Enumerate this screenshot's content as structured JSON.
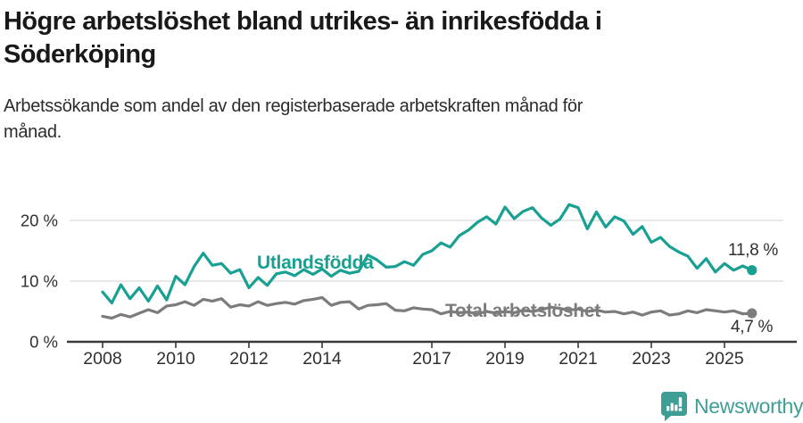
{
  "page": {
    "title_line1": "Högre arbetslöshet bland utrikes- än inrikesfödda i",
    "title_line2": "Söderköping",
    "subtitle_line1": "Arbetssökande som andel av den registerbaserade arbetskraften månad för",
    "subtitle_line2": "månad."
  },
  "branding": {
    "logo_text": "Newsworthy",
    "logo_color": "#3e9e96",
    "logo_icon": "speech-bubble-bar-chart-icon"
  },
  "chart_data": {
    "type": "line",
    "title": "Högre arbetslöshet bland utrikes- än inrikesfödda i Söderköping",
    "subtitle": "Arbetssökande som andel av den registerbaserade arbetskraften månad för månad.",
    "x": {
      "start": 2008,
      "step_years": 0.25,
      "end": 2025.75
    },
    "x_ticks": [
      2008,
      2010,
      2012,
      2014,
      2017,
      2019,
      2021,
      2023,
      2025
    ],
    "y_ticks": [
      {
        "value": 0,
        "label": "0 %"
      },
      {
        "value": 10,
        "label": "10 %"
      },
      {
        "value": 20,
        "label": "20 %"
      }
    ],
    "ylim": [
      0,
      23.5
    ],
    "grid": "horizontal",
    "legend_position": "inline-labels",
    "axis_color": "#3a3a3a",
    "grid_color": "#dcdcdc",
    "tick_text_color": "#2f2f2f",
    "series": [
      {
        "name": "Utlandsfödda",
        "color": "#18a092",
        "end_label": "11,8 %",
        "end_value": 11.8,
        "values": [
          8.2,
          6.4,
          9.4,
          7.1,
          8.9,
          6.7,
          9.2,
          6.9,
          10.8,
          9.4,
          12.4,
          14.6,
          12.6,
          12.9,
          11.3,
          11.9,
          8.9,
          10.6,
          9.3,
          11.2,
          11.5,
          10.9,
          11.9,
          11.1,
          12.0,
          10.8,
          11.8,
          11.3,
          11.6,
          14.3,
          13.5,
          12.3,
          12.4,
          13.2,
          12.6,
          14.4,
          15.0,
          16.3,
          15.6,
          17.5,
          18.4,
          19.7,
          20.6,
          19.4,
          22.2,
          20.3,
          21.5,
          22.1,
          20.4,
          19.2,
          20.2,
          22.6,
          22.1,
          18.6,
          21.4,
          18.9,
          20.6,
          19.9,
          17.7,
          19.0,
          16.4,
          17.2,
          15.7,
          14.8,
          14.1,
          12.1,
          13.7,
          11.5,
          12.9,
          11.8,
          12.5,
          11.8
        ]
      },
      {
        "name": "Total arbetslöshet",
        "color": "#7c7c7c",
        "end_label": "4,7 %",
        "end_value": 4.7,
        "values": [
          4.2,
          3.9,
          4.5,
          4.1,
          4.7,
          5.3,
          4.8,
          5.9,
          6.1,
          6.6,
          6.0,
          7.0,
          6.7,
          7.1,
          5.7,
          6.1,
          5.9,
          6.6,
          6.0,
          6.3,
          6.5,
          6.2,
          6.8,
          7.0,
          7.3,
          6.0,
          6.5,
          6.6,
          5.4,
          6.0,
          6.1,
          6.3,
          5.2,
          5.1,
          5.6,
          5.4,
          5.3,
          4.6,
          5.0,
          4.8,
          4.9,
          4.6,
          5.0,
          4.7,
          5.0,
          4.8,
          5.2,
          5.0,
          5.3,
          5.7,
          5.5,
          5.2,
          5.4,
          5.0,
          5.2,
          4.9,
          5.0,
          4.6,
          4.9,
          4.4,
          4.9,
          5.1,
          4.4,
          4.6,
          5.1,
          4.8,
          5.3,
          5.1,
          4.9,
          5.1,
          4.6,
          4.7
        ]
      }
    ]
  }
}
